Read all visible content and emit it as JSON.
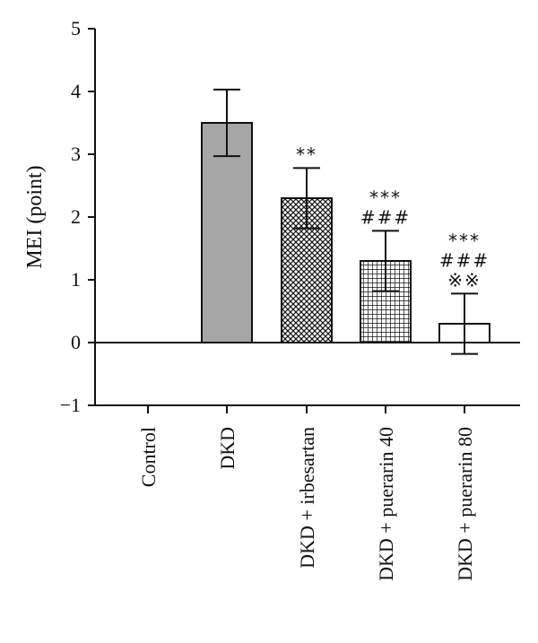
{
  "chart_data": {
    "type": "bar",
    "title": "",
    "xlabel": "",
    "ylabel": "MEI (point)",
    "ylim": [
      -1,
      5
    ],
    "yticks": [
      "5",
      "4",
      "3",
      "2",
      "1",
      "0",
      "−1"
    ],
    "categories": [
      "Control",
      "DKD",
      "DKD + irbesartan",
      "DKD + puerarin 40",
      "DKD + puerarin 80"
    ],
    "values": [
      0,
      3.5,
      2.3,
      1.3,
      0.3
    ],
    "error": [
      0,
      0.53,
      0.48,
      0.48,
      0.48
    ],
    "fills": [
      "none",
      "solid-gray",
      "crosshatch",
      "grid",
      "white"
    ],
    "significance": [
      [],
      [],
      [
        "**"
      ],
      [
        "***",
        "###"
      ],
      [
        "***",
        "###",
        "※※"
      ]
    ],
    "grid": false,
    "legend": "none",
    "colors": {
      "bar_gray": "#a6a6a6",
      "line": "#111111"
    }
  }
}
